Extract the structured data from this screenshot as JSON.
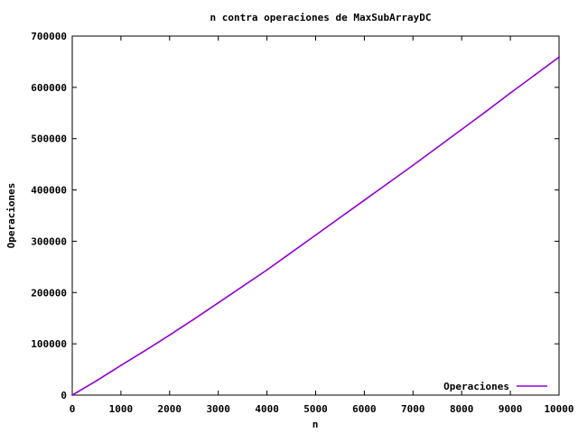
{
  "chart_data": {
    "type": "line",
    "title": "n contra operaciones de MaxSubArrayDC",
    "xlabel": "n",
    "ylabel": "Operaciones",
    "xlim": [
      0,
      10000
    ],
    "ylim": [
      0,
      700000
    ],
    "x_ticks": [
      0,
      1000,
      2000,
      3000,
      4000,
      5000,
      6000,
      7000,
      8000,
      9000,
      10000
    ],
    "y_ticks": [
      0,
      100000,
      200000,
      300000,
      400000,
      500000,
      600000,
      700000
    ],
    "grid": false,
    "legend_position": "bottom-right",
    "series": [
      {
        "name": "Operaciones",
        "color": "#9400d3",
        "x": [
          0,
          500,
          1000,
          1500,
          2000,
          2500,
          3000,
          3500,
          4000,
          4500,
          5000,
          5500,
          6000,
          6500,
          7000,
          7500,
          8000,
          8500,
          9000,
          9500,
          10000
        ],
        "y": [
          0,
          28000,
          58000,
          87000,
          117000,
          148000,
          180000,
          212000,
          244000,
          278000,
          312000,
          346000,
          380000,
          414000,
          448000,
          483000,
          518000,
          553000,
          589000,
          624000,
          659000
        ]
      }
    ]
  }
}
